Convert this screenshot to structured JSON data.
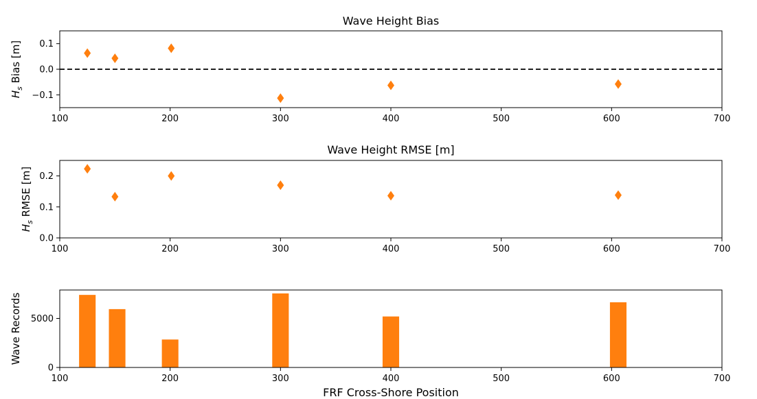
{
  "chart_data": [
    {
      "type": "scatter",
      "title": "Wave Height Bias",
      "ylabel_symbol": "H",
      "ylabel_sub": "s",
      "ylabel_rest": " Bias [m]",
      "x": [
        125,
        150,
        201,
        300,
        400,
        606
      ],
      "y": [
        0.063,
        0.043,
        0.082,
        -0.113,
        -0.063,
        -0.058
      ],
      "xlim": [
        100,
        700
      ],
      "ylim": [
        -0.15,
        0.15
      ],
      "xticks": [
        100,
        200,
        300,
        400,
        500,
        600,
        700
      ],
      "yticks": [
        -0.1,
        0.0,
        0.1
      ],
      "ytick_labels": [
        "−0.1",
        "0.0",
        "0.1"
      ],
      "reference_line": {
        "y": 0.0,
        "style": "dashed",
        "color": "#000000"
      },
      "marker": "diamond",
      "color": "#ff7f0e"
    },
    {
      "type": "scatter",
      "title": "Wave Height RMSE [m]",
      "ylabel_symbol": "H",
      "ylabel_sub": "s",
      "ylabel_rest": " RMSE [m]",
      "x": [
        125,
        150,
        201,
        300,
        400,
        606
      ],
      "y": [
        0.223,
        0.133,
        0.2,
        0.17,
        0.136,
        0.138
      ],
      "xlim": [
        100,
        700
      ],
      "ylim": [
        0.0,
        0.25
      ],
      "xticks": [
        100,
        200,
        300,
        400,
        500,
        600,
        700
      ],
      "yticks": [
        0.0,
        0.1,
        0.2
      ],
      "ytick_labels": [
        "0.0",
        "0.1",
        "0.2"
      ],
      "marker": "diamond",
      "color": "#ff7f0e"
    },
    {
      "type": "bar",
      "ylabel": "Wave Records",
      "xlabel": "FRF Cross-Shore Position",
      "x": [
        125,
        152,
        200,
        300,
        400,
        606
      ],
      "values": [
        7400,
        5950,
        2850,
        7550,
        5200,
        6650
      ],
      "bar_width": 15,
      "xlim": [
        100,
        700
      ],
      "ylim": [
        0,
        7900
      ],
      "xticks": [
        100,
        200,
        300,
        400,
        500,
        600,
        700
      ],
      "yticks": [
        0,
        5000
      ],
      "ytick_labels": [
        "0",
        "5000"
      ],
      "color": "#ff7f0e"
    }
  ]
}
